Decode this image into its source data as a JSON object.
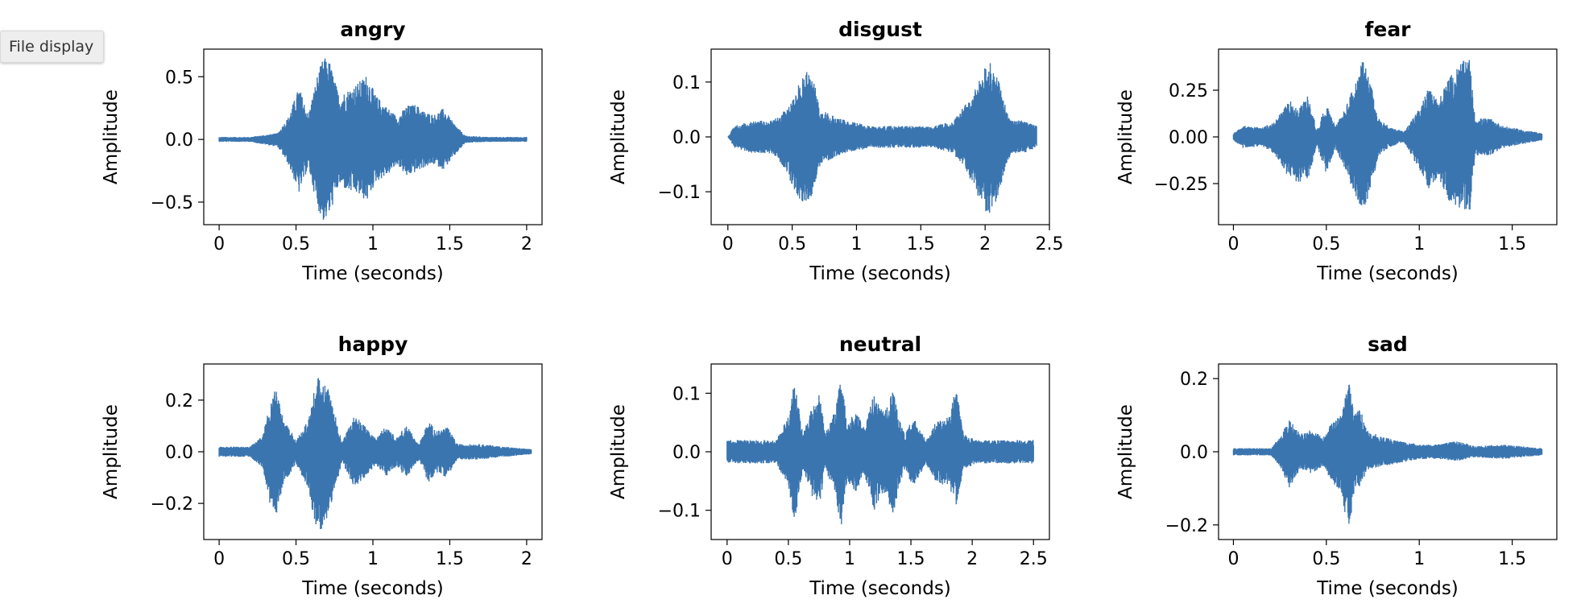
{
  "toolbar": {
    "file_display_label": "File display"
  },
  "colors": {
    "waveform": "#3a75b0",
    "axes": "#000000",
    "background": "#ffffff"
  },
  "chart_data": [
    {
      "type": "line",
      "title": "angry",
      "xlabel": "Time (seconds)",
      "ylabel": "Amplitude",
      "xlim": [
        -0.1,
        2.1
      ],
      "ylim": [
        -0.68,
        0.72
      ],
      "xticks": [
        0,
        0.5,
        1,
        1.5,
        2
      ],
      "xtick_labels": [
        "0",
        "0.5",
        "1",
        "1.5",
        "2"
      ],
      "yticks": [
        -0.5,
        0,
        0.5
      ],
      "ytick_labels": [
        "−0.5",
        "0.0",
        "0.5"
      ],
      "duration": 2.0,
      "envelope": {
        "t": [
          0,
          0.2,
          0.38,
          0.45,
          0.52,
          0.58,
          0.64,
          0.68,
          0.72,
          0.78,
          0.84,
          0.9,
          0.96,
          1.02,
          1.1,
          1.16,
          1.22,
          1.28,
          1.34,
          1.4,
          1.46,
          1.52,
          1.6,
          1.75,
          2.0
        ],
        "upper": [
          0.02,
          0.02,
          0.05,
          0.18,
          0.42,
          0.2,
          0.52,
          0.66,
          0.62,
          0.35,
          0.4,
          0.45,
          0.52,
          0.35,
          0.25,
          0.18,
          0.27,
          0.28,
          0.22,
          0.2,
          0.25,
          0.14,
          0.03,
          0.02,
          0.02
        ],
        "lower": [
          -0.02,
          -0.02,
          -0.06,
          -0.2,
          -0.43,
          -0.22,
          -0.55,
          -0.66,
          -0.6,
          -0.36,
          -0.42,
          -0.44,
          -0.5,
          -0.34,
          -0.28,
          -0.2,
          -0.3,
          -0.26,
          -0.22,
          -0.2,
          -0.24,
          -0.15,
          -0.03,
          -0.02,
          -0.02
        ]
      }
    },
    {
      "type": "line",
      "title": "disgust",
      "xlabel": "Time (seconds)",
      "ylabel": "Amplitude",
      "xlim": [
        -0.13,
        2.5
      ],
      "ylim": [
        -0.16,
        0.16
      ],
      "xticks": [
        0,
        0.5,
        1,
        1.5,
        2,
        2.5
      ],
      "xtick_labels": [
        "0",
        "0.5",
        "1",
        "1.5",
        "2",
        "2.5"
      ],
      "yticks": [
        -0.1,
        0,
        0.1
      ],
      "ytick_labels": [
        "−0.1",
        "0.0",
        "0.1"
      ],
      "duration": 2.4,
      "envelope": {
        "t": [
          0,
          0.05,
          0.2,
          0.35,
          0.45,
          0.52,
          0.58,
          0.62,
          0.66,
          0.72,
          0.85,
          1.1,
          1.35,
          1.6,
          1.75,
          1.85,
          1.95,
          2.02,
          2.07,
          2.12,
          2.2,
          2.3,
          2.4
        ],
        "upper": [
          0.0,
          0.02,
          0.03,
          0.03,
          0.05,
          0.08,
          0.11,
          0.13,
          0.11,
          0.05,
          0.035,
          0.02,
          0.02,
          0.02,
          0.03,
          0.06,
          0.1,
          0.14,
          0.13,
          0.09,
          0.03,
          0.03,
          0.02
        ],
        "lower": [
          0.0,
          -0.02,
          -0.03,
          -0.03,
          -0.06,
          -0.1,
          -0.12,
          -0.13,
          -0.1,
          -0.05,
          -0.035,
          -0.02,
          -0.02,
          -0.02,
          -0.03,
          -0.06,
          -0.11,
          -0.145,
          -0.13,
          -0.09,
          -0.03,
          -0.03,
          -0.02
        ]
      }
    },
    {
      "type": "line",
      "title": "fear",
      "xlabel": "Time (seconds)",
      "ylabel": "Amplitude",
      "xlim": [
        -0.08,
        1.74
      ],
      "ylim": [
        -0.47,
        0.47
      ],
      "xticks": [
        0,
        0.5,
        1,
        1.5
      ],
      "xtick_labels": [
        "0",
        "0.5",
        "1",
        "1.5"
      ],
      "yticks": [
        -0.25,
        0,
        0.25
      ],
      "ytick_labels": [
        "−0.25",
        "0.00",
        "0.25"
      ],
      "duration": 1.66,
      "envelope": {
        "t": [
          0,
          0.05,
          0.15,
          0.22,
          0.3,
          0.35,
          0.4,
          0.45,
          0.5,
          0.55,
          0.6,
          0.65,
          0.7,
          0.74,
          0.78,
          0.85,
          0.92,
          0.98,
          1.05,
          1.1,
          1.15,
          1.22,
          1.27,
          1.3,
          1.38,
          1.45,
          1.55,
          1.66
        ],
        "upper": [
          0.02,
          0.06,
          0.05,
          0.08,
          0.2,
          0.15,
          0.22,
          0.04,
          0.18,
          0.06,
          0.15,
          0.28,
          0.42,
          0.28,
          0.1,
          0.05,
          0.03,
          0.12,
          0.26,
          0.2,
          0.3,
          0.4,
          0.42,
          0.1,
          0.1,
          0.06,
          0.04,
          0.02
        ],
        "lower": [
          -0.02,
          -0.06,
          -0.05,
          -0.09,
          -0.22,
          -0.25,
          -0.24,
          -0.05,
          -0.2,
          -0.06,
          -0.18,
          -0.3,
          -0.4,
          -0.28,
          -0.1,
          -0.05,
          -0.03,
          -0.14,
          -0.28,
          -0.22,
          -0.33,
          -0.4,
          -0.42,
          -0.1,
          -0.1,
          -0.06,
          -0.04,
          -0.02
        ]
      }
    },
    {
      "type": "line",
      "title": "happy",
      "xlabel": "Time (seconds)",
      "ylabel": "Amplitude",
      "xlim": [
        -0.1,
        2.1
      ],
      "ylim": [
        -0.34,
        0.34
      ],
      "xticks": [
        0,
        0.5,
        1,
        1.5,
        2
      ],
      "xtick_labels": [
        "0",
        "0.5",
        "1",
        "1.5",
        "2"
      ],
      "yticks": [
        -0.2,
        0,
        0.2
      ],
      "ytick_labels": [
        "−0.2",
        "0.0",
        "0.2"
      ],
      "duration": 2.03,
      "envelope": {
        "t": [
          0,
          0.2,
          0.28,
          0.33,
          0.37,
          0.42,
          0.5,
          0.58,
          0.63,
          0.68,
          0.73,
          0.8,
          0.88,
          0.95,
          1.02,
          1.08,
          1.15,
          1.22,
          1.3,
          1.36,
          1.42,
          1.48,
          1.55,
          1.7,
          1.85,
          2.03
        ],
        "upper": [
          0.02,
          0.02,
          0.06,
          0.18,
          0.25,
          0.12,
          0.05,
          0.12,
          0.28,
          0.3,
          0.2,
          0.04,
          0.14,
          0.1,
          0.05,
          0.1,
          0.06,
          0.1,
          0.03,
          0.12,
          0.08,
          0.1,
          0.03,
          0.03,
          0.02,
          0.01
        ],
        "lower": [
          -0.02,
          -0.02,
          -0.06,
          -0.2,
          -0.25,
          -0.12,
          -0.05,
          -0.14,
          -0.3,
          -0.3,
          -0.2,
          -0.04,
          -0.14,
          -0.1,
          -0.05,
          -0.1,
          -0.06,
          -0.1,
          -0.03,
          -0.12,
          -0.08,
          -0.1,
          -0.03,
          -0.03,
          -0.02,
          -0.01
        ]
      }
    },
    {
      "type": "line",
      "title": "neutral",
      "xlabel": "Time (seconds)",
      "ylabel": "Amplitude",
      "xlim": [
        -0.13,
        2.63
      ],
      "ylim": [
        -0.15,
        0.15
      ],
      "xticks": [
        0,
        0.5,
        1,
        1.5,
        2,
        2.5
      ],
      "xtick_labels": [
        "0",
        "0.5",
        "1",
        "1.5",
        "2",
        "2.5"
      ],
      "yticks": [
        -0.1,
        0,
        0.1
      ],
      "ytick_labels": [
        "−0.1",
        "0.0",
        "0.1"
      ],
      "duration": 2.5,
      "envelope": {
        "t": [
          0,
          0.4,
          0.5,
          0.55,
          0.62,
          0.7,
          0.75,
          0.8,
          0.88,
          0.93,
          0.98,
          1.05,
          1.12,
          1.2,
          1.28,
          1.35,
          1.4,
          1.45,
          1.52,
          1.62,
          1.7,
          1.8,
          1.87,
          1.93,
          2.05,
          2.3,
          2.5
        ],
        "upper": [
          0.02,
          0.02,
          0.06,
          0.12,
          0.03,
          0.08,
          0.11,
          0.03,
          0.07,
          0.13,
          0.05,
          0.07,
          0.04,
          0.1,
          0.07,
          0.11,
          0.06,
          0.03,
          0.06,
          0.02,
          0.05,
          0.06,
          0.11,
          0.03,
          0.02,
          0.02,
          0.02
        ],
        "lower": [
          -0.02,
          -0.02,
          -0.06,
          -0.12,
          -0.03,
          -0.08,
          -0.1,
          -0.03,
          -0.07,
          -0.13,
          -0.05,
          -0.07,
          -0.04,
          -0.1,
          -0.07,
          -0.12,
          -0.06,
          -0.03,
          -0.06,
          -0.02,
          -0.05,
          -0.06,
          -0.09,
          -0.03,
          -0.02,
          -0.02,
          -0.02
        ]
      }
    },
    {
      "type": "line",
      "title": "sad",
      "xlabel": "Time (seconds)",
      "ylabel": "Amplitude",
      "xlim": [
        -0.08,
        1.74
      ],
      "ylim": [
        -0.24,
        0.24
      ],
      "xticks": [
        0,
        0.5,
        1,
        1.5
      ],
      "xtick_labels": [
        "0",
        "0.5",
        "1",
        "1.5"
      ],
      "yticks": [
        -0.2,
        0,
        0.2
      ],
      "ytick_labels": [
        "−0.2",
        "0.0",
        "0.2"
      ],
      "duration": 1.66,
      "envelope": {
        "t": [
          0,
          0.2,
          0.25,
          0.3,
          0.36,
          0.42,
          0.48,
          0.53,
          0.58,
          0.62,
          0.65,
          0.68,
          0.72,
          0.8,
          0.9,
          1.0,
          1.1,
          1.2,
          1.3,
          1.45,
          1.66
        ],
        "upper": [
          0.01,
          0.01,
          0.04,
          0.09,
          0.05,
          0.06,
          0.04,
          0.08,
          0.1,
          0.2,
          0.1,
          0.12,
          0.06,
          0.04,
          0.03,
          0.02,
          0.02,
          0.03,
          0.015,
          0.02,
          0.01
        ],
        "lower": [
          -0.01,
          -0.01,
          -0.04,
          -0.1,
          -0.05,
          -0.06,
          -0.04,
          -0.08,
          -0.12,
          -0.22,
          -0.12,
          -0.1,
          -0.05,
          -0.04,
          -0.03,
          -0.02,
          -0.02,
          -0.025,
          -0.015,
          -0.02,
          -0.01
        ]
      }
    }
  ]
}
